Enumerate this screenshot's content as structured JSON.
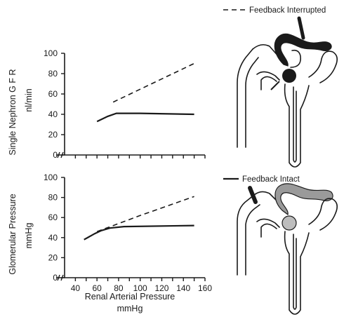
{
  "legend": {
    "interrupted": "Feedback Interrupted",
    "intact": "Feedback Intact"
  },
  "chart_data": [
    {
      "type": "line",
      "ylabel": "Single Nephron G F R",
      "ylabel_units": "nl/min",
      "ylim": [
        0,
        100
      ],
      "yticks": [
        "0",
        "20",
        "40",
        "60",
        "80",
        "100"
      ],
      "xlim": [
        30,
        160
      ],
      "series": [
        {
          "name": "Feedback Interrupted",
          "style": "dashed",
          "points": [
            [
              75,
              52
            ],
            [
              150,
              90
            ]
          ]
        },
        {
          "name": "Feedback Intact",
          "style": "solid",
          "points": [
            [
              60,
              33
            ],
            [
              70,
              38
            ],
            [
              78,
              41
            ],
            [
              100,
              41
            ],
            [
              150,
              40
            ]
          ]
        }
      ]
    },
    {
      "type": "line",
      "ylabel": "Glomerular Pressure",
      "ylabel_units": "mmHg",
      "xlabel": "Renal Arterial Pressure",
      "xlabel_units": "mmHg",
      "ylim": [
        0,
        100
      ],
      "yticks": [
        "0",
        "20",
        "40",
        "60",
        "80",
        "100"
      ],
      "xlim": [
        30,
        160
      ],
      "xticks": [
        "40",
        "60",
        "80",
        "100",
        "120",
        "140",
        "160"
      ],
      "series": [
        {
          "name": "Feedback Interrupted",
          "style": "dashed",
          "points": [
            [
              60,
              46
            ],
            [
              100,
              62
            ],
            [
              150,
              81
            ]
          ]
        },
        {
          "name": "Feedback Intact",
          "style": "solid",
          "points": [
            [
              48,
              38
            ],
            [
              58,
              44
            ],
            [
              64,
              47
            ],
            [
              72,
              49.5
            ],
            [
              85,
              51
            ],
            [
              150,
              52
            ]
          ]
        }
      ]
    }
  ]
}
